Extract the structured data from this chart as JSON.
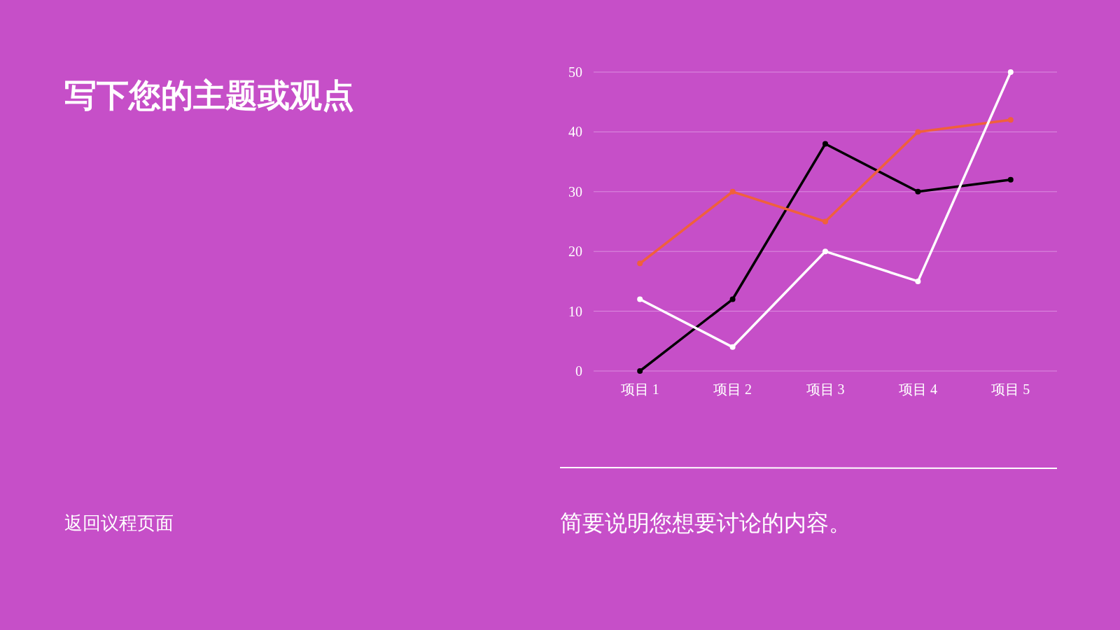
{
  "chart_data": {
    "type": "line",
    "title": "写下您的主题或观点",
    "annotations": [
      "返回议程页面",
      "简要说明您想要讨论的内容。"
    ],
    "categories": [
      "项目 1",
      "项目 2",
      "项目 3",
      "项目 4",
      "项目 5"
    ],
    "series": [
      {
        "color": "#000000",
        "values": [
          0,
          12,
          38,
          30,
          32
        ]
      },
      {
        "color": "#f0603c",
        "values": [
          18,
          30,
          25,
          40,
          42
        ]
      },
      {
        "color": "#ffffff",
        "values": [
          12,
          4,
          20,
          15,
          50
        ]
      }
    ],
    "ylim": [
      0,
      50
    ],
    "yticks": [
      0,
      10,
      20,
      30,
      40,
      50
    ],
    "grid": "y",
    "marker": "circle",
    "line_style": "solid"
  }
}
